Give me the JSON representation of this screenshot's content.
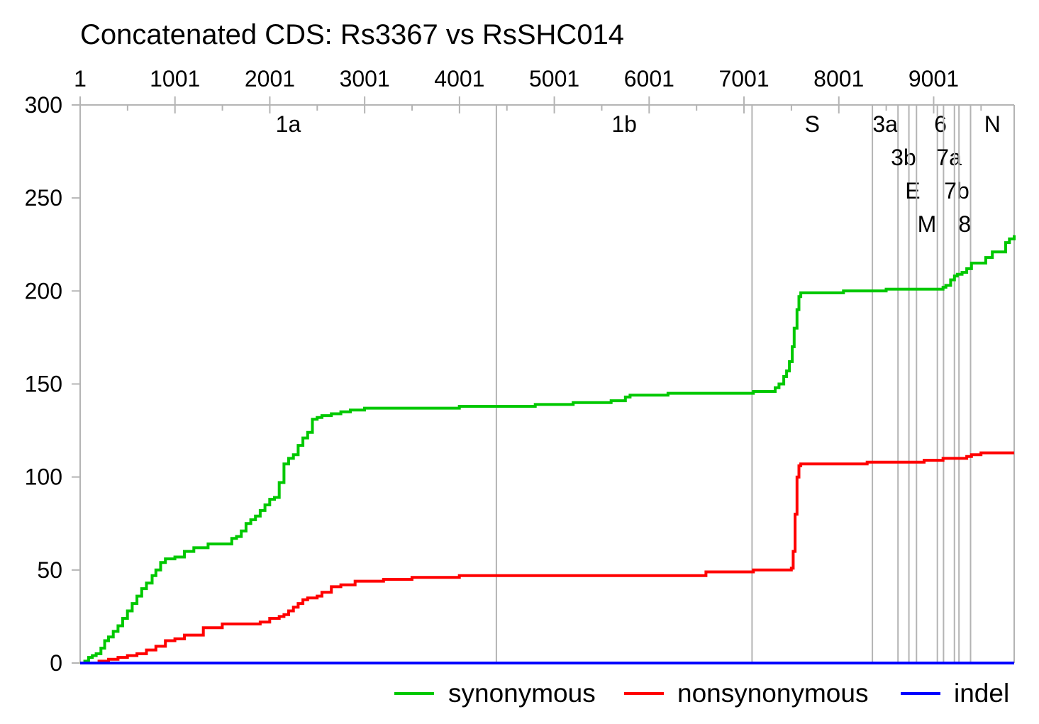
{
  "chart_data": {
    "type": "line",
    "title": "Concatenated CDS: Rs3367 vs RsSHC014",
    "xlabel": "",
    "ylabel": "",
    "xlim": [
      1,
      9850
    ],
    "ylim": [
      0,
      300
    ],
    "x_ticks": [
      1,
      1001,
      2001,
      3001,
      4001,
      5001,
      6001,
      7001,
      8001,
      9001
    ],
    "x_tick_labels": [
      "1",
      "1001",
      "2001",
      "3001",
      "4001",
      "5001",
      "6001",
      "7001",
      "8001",
      "9001"
    ],
    "y_ticks": [
      0,
      50,
      100,
      150,
      200,
      250,
      300
    ],
    "y_tick_labels": [
      "0",
      "50",
      "100",
      "150",
      "200",
      "250",
      "300"
    ],
    "x_axis_position": "top",
    "legend_position": "bottom-right",
    "gene_regions": [
      {
        "name": "1a",
        "start": 1,
        "end": 4390,
        "row": 0
      },
      {
        "name": "1b",
        "start": 4390,
        "end": 7086,
        "row": 0
      },
      {
        "name": "S",
        "start": 7086,
        "end": 8355,
        "row": 0
      },
      {
        "name": "3a",
        "start": 8355,
        "end": 8625,
        "row": 0
      },
      {
        "name": "3b",
        "start": 8625,
        "end": 8740,
        "row": 1
      },
      {
        "name": "E",
        "start": 8740,
        "end": 8820,
        "row": 2
      },
      {
        "name": "M",
        "start": 8820,
        "end": 9040,
        "row": 3
      },
      {
        "name": "6",
        "start": 9040,
        "end": 9105,
        "row": 0
      },
      {
        "name": "7a",
        "start": 9105,
        "end": 9220,
        "row": 1
      },
      {
        "name": "7b",
        "start": 9220,
        "end": 9268,
        "row": 2
      },
      {
        "name": "8",
        "start": 9268,
        "end": 9390,
        "row": 3
      },
      {
        "name": "N",
        "start": 9390,
        "end": 9850,
        "row": 0
      }
    ],
    "series": [
      {
        "name": "synonymous",
        "color": "#00c800",
        "x": [
          1,
          50,
          90,
          130,
          170,
          220,
          260,
          300,
          350,
          400,
          450,
          500,
          550,
          600,
          650,
          700,
          760,
          800,
          850,
          900,
          1000,
          1100,
          1200,
          1350,
          1500,
          1600,
          1650,
          1700,
          1750,
          1800,
          1850,
          1900,
          1950,
          2000,
          2050,
          2100,
          2150,
          2200,
          2250,
          2300,
          2350,
          2400,
          2450,
          2500,
          2550,
          2650,
          2750,
          2850,
          3000,
          3200,
          3600,
          4000,
          4390,
          4700,
          4800,
          5200,
          5600,
          5750,
          5800,
          6200,
          6600,
          7000,
          7100,
          7300,
          7330,
          7370,
          7420,
          7450,
          7480,
          7510,
          7530,
          7560,
          7580,
          7600,
          7620,
          7700,
          7900,
          8050,
          8200,
          8300,
          8500,
          8700,
          8900,
          9050,
          9100,
          9130,
          9180,
          9220,
          9250,
          9300,
          9350,
          9400,
          9500,
          9550,
          9620,
          9700,
          9760,
          9800,
          9850
        ],
        "values": [
          0,
          1,
          3,
          4,
          5,
          8,
          12,
          14,
          17,
          20,
          24,
          28,
          32,
          36,
          40,
          43,
          47,
          50,
          54,
          56,
          57,
          60,
          62,
          64,
          64,
          67,
          68,
          71,
          75,
          77,
          79,
          82,
          85,
          88,
          89,
          97,
          107,
          110,
          112,
          117,
          121,
          124,
          131,
          132,
          133,
          134,
          135,
          136,
          137,
          137,
          137,
          138,
          138,
          138,
          139,
          140,
          141,
          143,
          144,
          145,
          145,
          145,
          146,
          146,
          148,
          150,
          154,
          157,
          162,
          170,
          180,
          190,
          197,
          199,
          199,
          199,
          199,
          200,
          200,
          200,
          201,
          201,
          201,
          201,
          202,
          203,
          206,
          208,
          209,
          210,
          212,
          215,
          215,
          218,
          221,
          221,
          226,
          228,
          230
        ]
      },
      {
        "name": "nonsynonymous",
        "color": "#ff0000",
        "x": [
          1,
          100,
          200,
          300,
          400,
          500,
          600,
          700,
          800,
          900,
          1000,
          1100,
          1300,
          1500,
          1600,
          1900,
          2000,
          2100,
          2150,
          2200,
          2250,
          2300,
          2350,
          2400,
          2450,
          2500,
          2550,
          2650,
          2750,
          2900,
          3200,
          3500,
          4000,
          4390,
          5000,
          6000,
          6560,
          6600,
          7000,
          7100,
          7500,
          7520,
          7540,
          7560,
          7580,
          7600,
          7700,
          8200,
          8300,
          8500,
          8700,
          8900,
          9100,
          9250,
          9300,
          9350,
          9400,
          9500,
          9850
        ],
        "values": [
          0,
          0,
          1,
          2,
          3,
          4,
          5,
          7,
          9,
          12,
          13,
          15,
          19,
          21,
          21,
          22,
          24,
          25,
          26,
          28,
          30,
          32,
          34,
          35,
          35,
          36,
          38,
          41,
          42,
          44,
          45,
          46,
          47,
          47,
          47,
          47,
          47,
          49,
          49,
          50,
          51,
          60,
          80,
          100,
          106,
          107,
          107,
          107,
          108,
          108,
          108,
          109,
          110,
          110,
          110,
          111,
          112,
          113,
          113
        ]
      },
      {
        "name": "indel",
        "color": "#0000ff",
        "x": [
          1,
          9850
        ],
        "values": [
          0,
          0
        ]
      }
    ]
  }
}
